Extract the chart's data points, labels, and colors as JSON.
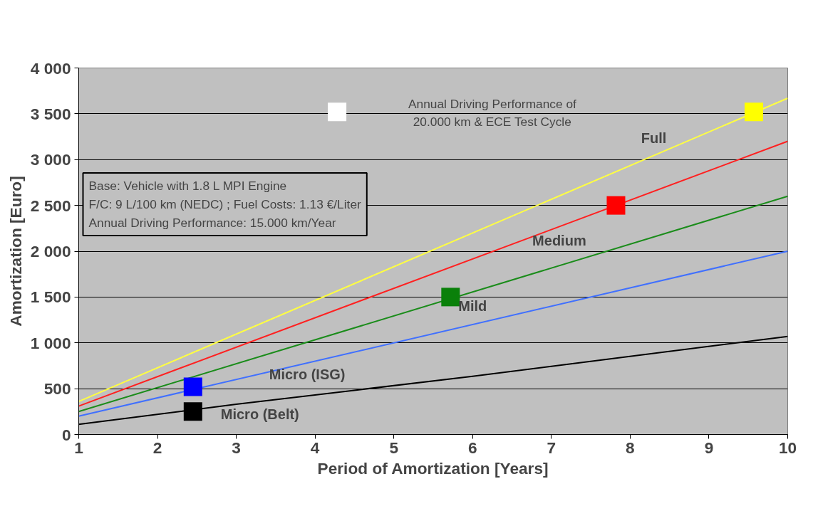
{
  "chart_data": {
    "type": "line",
    "xlabel": "Period of Amortization [Years]",
    "ylabel": "Amortization [Euro]",
    "xlim": [
      1,
      10
    ],
    "xticks": [
      1,
      2,
      3,
      4,
      5,
      6,
      7,
      8,
      9,
      10
    ],
    "ylim": [
      0,
      4000
    ],
    "yticks": [
      0,
      {
        "value": 500,
        "label": "500"
      },
      {
        "value": 1000,
        "label": "1 000"
      },
      {
        "value": 1500,
        "label": "1 500"
      },
      {
        "value": 2000,
        "label": "2 000"
      },
      {
        "value": 2500,
        "label": "2 500"
      },
      {
        "value": 3000,
        "label": "3 000"
      },
      {
        "value": 3500,
        "label": "3 500"
      },
      {
        "value": 4000,
        "label": "4 000"
      }
    ],
    "grid": "y",
    "line_style": "solid",
    "x": [
      1,
      10
    ],
    "series": [
      {
        "name": "Full",
        "color": "#ffff40",
        "values": [
          360,
          3670
        ]
      },
      {
        "name": "Medium",
        "color": "#ff2020",
        "values": [
          310,
          3200
        ]
      },
      {
        "name": "Mild",
        "color": "#1a8c1a",
        "values": [
          250,
          2600
        ]
      },
      {
        "name": "Micro (ISG)",
        "color": "#4070ff",
        "values": [
          200,
          2000
        ]
      },
      {
        "name": "Micro (Belt)",
        "color": "#000000",
        "x": [
          1,
          3,
          6,
          10
        ],
        "values": [
          110,
          330,
          635,
          1070
        ]
      },
      {
        "type": "scatter",
        "marker": "square",
        "x": [
          2.45,
          2.45,
          5.72,
          7.82,
          4.28,
          9.57
        ],
        "values": [
          250,
          520,
          1500,
          2500,
          3520,
          3520
        ],
        "colors": [
          "#000000",
          "#0000ff",
          "#0a800a",
          "#ff0000",
          "#ffffff",
          "#ffff00"
        ]
      }
    ],
    "annotations": [
      "Base: Vehicle with 1.8 L MPI Engine\nF/C: 9 L/100 km (NEDC) ; Fuel Costs: 1.13 €/Liter\nAnnual Driving Performance: 15.000 km/Year",
      "Annual Driving Performance of\n20.000 km & ECE Test Cycle"
    ]
  }
}
